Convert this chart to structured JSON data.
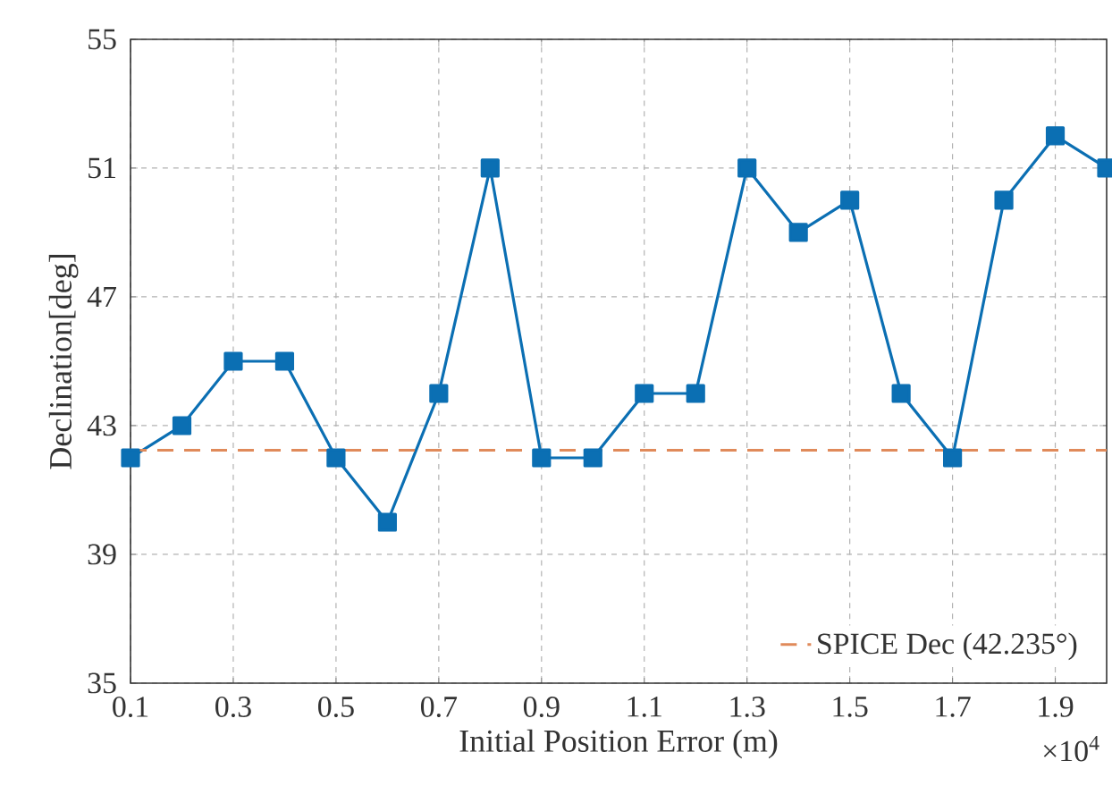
{
  "chart_data": {
    "type": "line",
    "xlabel": "Initial Position Error (m)",
    "ylabel": "Declination[deg]",
    "x": [
      0.1,
      0.2,
      0.3,
      0.4,
      0.5,
      0.6,
      0.7,
      0.8,
      0.9,
      1.0,
      1.1,
      1.2,
      1.3,
      1.4,
      1.5,
      1.6,
      1.7,
      1.8,
      1.9,
      2.0
    ],
    "series": [
      {
        "color": "#0b6fb3",
        "values": [
          42,
          43,
          45,
          45,
          42,
          40,
          44,
          51,
          42,
          42,
          44,
          44,
          51,
          49,
          50,
          44,
          42,
          50,
          52,
          51
        ]
      }
    ],
    "xlim": [
      0.1,
      2.0
    ],
    "xticks": [
      0.1,
      0.3,
      0.5,
      0.7,
      0.9,
      1.1,
      1.3,
      1.5,
      1.7,
      1.9
    ],
    "ylim": [
      35,
      55
    ],
    "yticks": [
      35,
      39,
      43,
      47,
      51,
      55
    ],
    "ref_lines": [
      {
        "axis": "y",
        "value": 42.235,
        "label": "SPICE Dec (42.235°)",
        "color": "#e08a5a",
        "line_style": "dashed"
      }
    ],
    "annotations": [
      "×10$^{4}$"
    ],
    "grid": true,
    "legend": "bottom right",
    "marker": "square",
    "line_style": "solid"
  }
}
